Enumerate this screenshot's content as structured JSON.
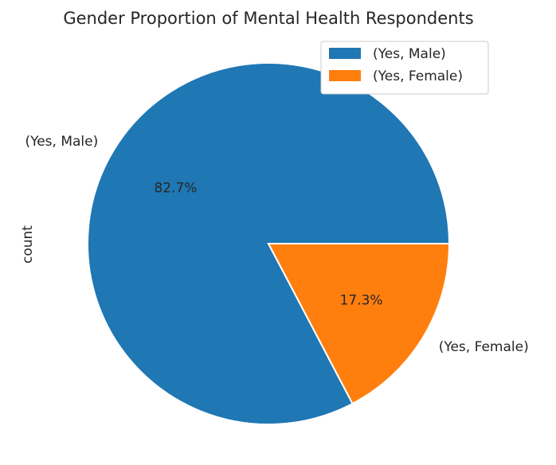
{
  "chart_data": {
    "type": "pie",
    "title": "Gender Proportion of Mental Health Respondents",
    "ylabel": "count",
    "legend_position": "top-right",
    "slices": [
      {
        "label": "(Yes, Male)",
        "percent_label": "82.7%",
        "value": 82.7,
        "color": "#1f77b4"
      },
      {
        "label": "(Yes, Female)",
        "percent_label": "17.3%",
        "value": 17.3,
        "color": "#ff7f0e"
      }
    ]
  }
}
